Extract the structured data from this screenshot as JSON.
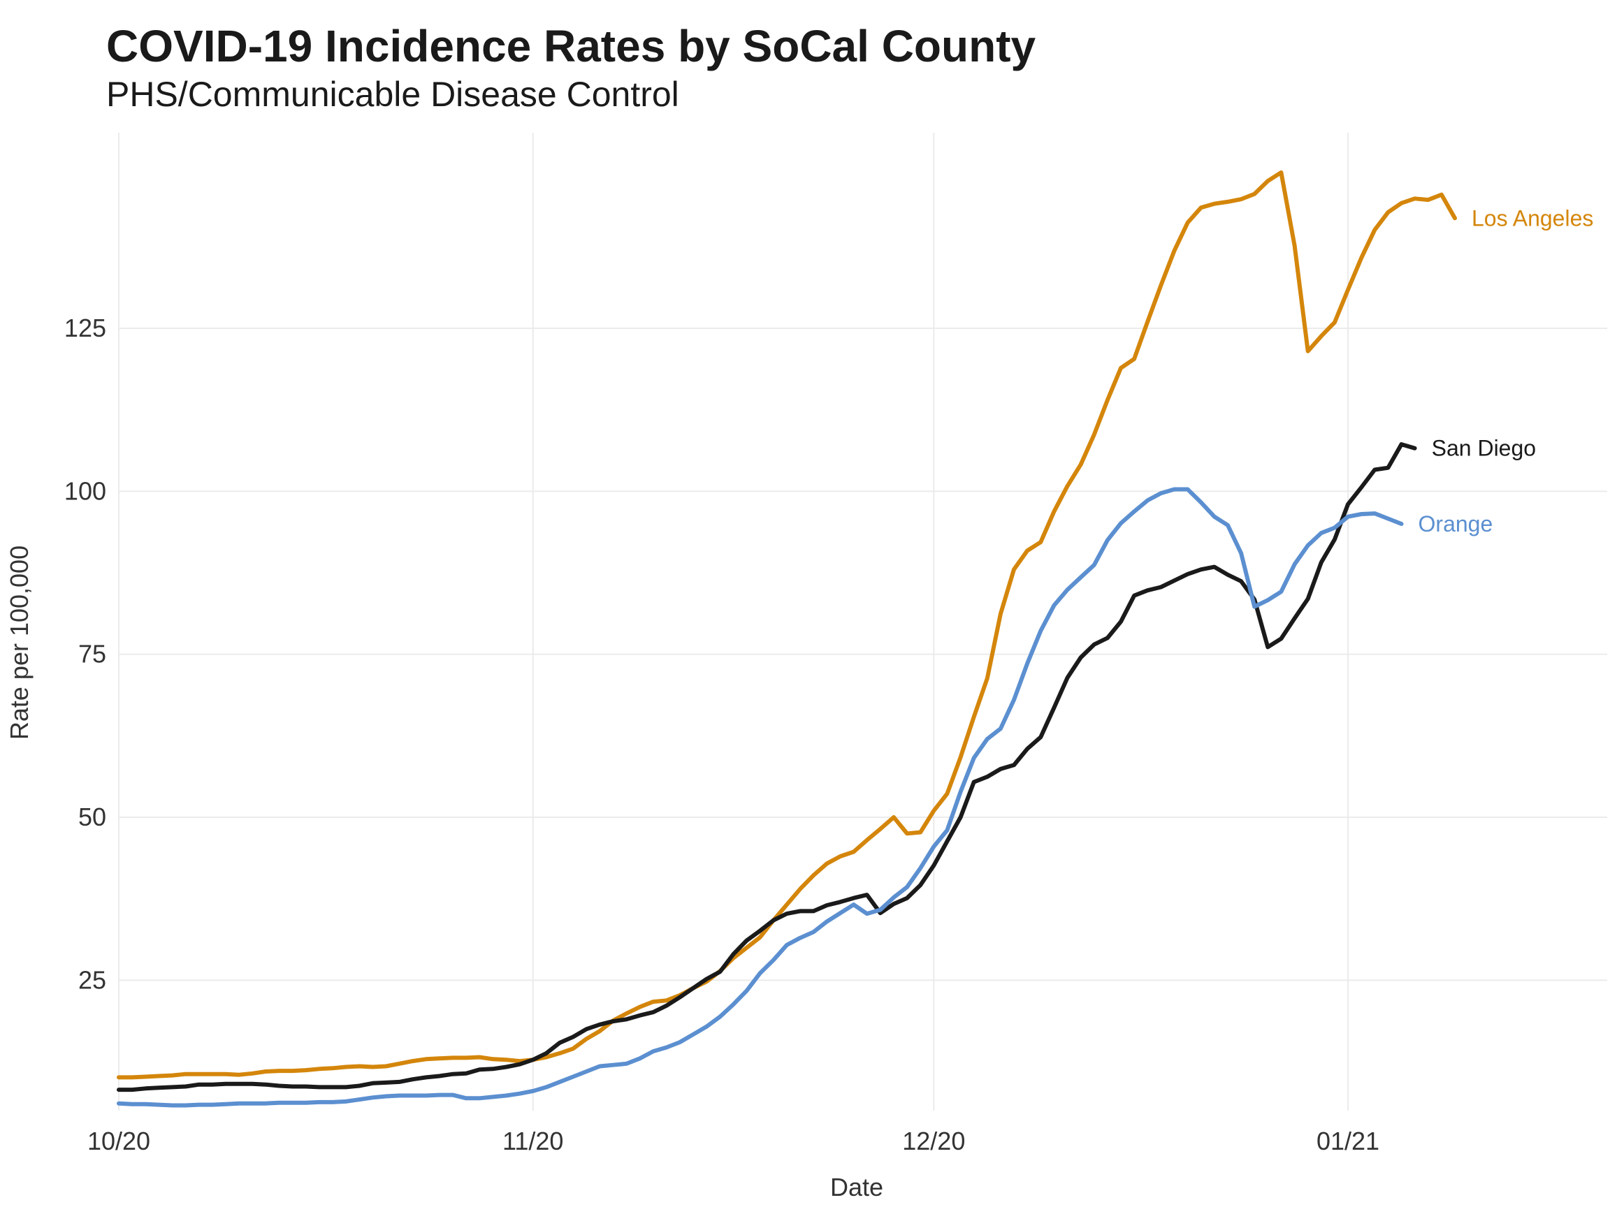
{
  "chart_data": {
    "type": "line",
    "title": "COVID-19 Incidence Rates by SoCal County",
    "subtitle": "PHS/Communicable Disease Control",
    "xlabel": "Date",
    "ylabel": "Rate per 100,000",
    "x_start": "2020-10-01",
    "x_ticks": [
      {
        "label": "10/20",
        "date": "2020-10-01"
      },
      {
        "label": "11/20",
        "date": "2020-11-01"
      },
      {
        "label": "12/20",
        "date": "2020-12-01"
      },
      {
        "label": "01/21",
        "date": "2021-01-01"
      }
    ],
    "xlim": [
      "2020-10-01",
      "2021-01-19"
    ],
    "y_ticks": [
      25,
      50,
      75,
      100,
      125
    ],
    "ylim": [
      5,
      155
    ],
    "grid": true,
    "legend": "direct labels at line ends",
    "series": [
      {
        "name": "Los Angeles",
        "color": "#D4860B",
        "values": [
          10.1,
          10.1,
          10.2,
          10.3,
          10.4,
          10.6,
          10.6,
          10.6,
          10.6,
          10.5,
          10.7,
          11.0,
          11.1,
          11.1,
          11.2,
          11.4,
          11.5,
          11.7,
          11.8,
          11.7,
          11.8,
          12.2,
          12.6,
          12.9,
          13.0,
          13.1,
          13.1,
          13.2,
          12.9,
          12.8,
          12.6,
          12.8,
          13.2,
          13.8,
          14.5,
          16.0,
          17.2,
          18.8,
          19.9,
          20.9,
          21.7,
          21.9,
          22.7,
          23.8,
          24.8,
          26.4,
          28.4,
          30.0,
          31.6,
          34.2,
          36.6,
          39.0,
          41.1,
          42.9,
          44.0,
          44.7,
          46.5,
          48.2,
          50.0,
          47.5,
          47.7,
          51.0,
          53.6,
          59.2,
          65.4,
          71.3,
          81.2,
          88.0,
          90.9,
          92.2,
          96.9,
          100.8,
          104.1,
          108.7,
          114.0,
          118.9,
          120.3,
          126.0,
          131.6,
          136.9,
          141.2,
          143.5,
          144.1,
          144.4,
          144.8,
          145.6,
          147.6,
          148.9,
          137.7,
          121.5,
          123.8,
          125.9,
          130.9,
          135.8,
          140.1,
          142.8,
          144.2,
          144.9,
          144.7,
          145.5,
          141.9
        ]
      },
      {
        "name": "San Diego",
        "color": "#1A1A1A",
        "values": [
          8.2,
          8.2,
          8.4,
          8.5,
          8.6,
          8.7,
          9.0,
          9.0,
          9.1,
          9.1,
          9.1,
          9.0,
          8.8,
          8.7,
          8.7,
          8.6,
          8.6,
          8.6,
          8.8,
          9.2,
          9.3,
          9.4,
          9.8,
          10.1,
          10.3,
          10.6,
          10.7,
          11.3,
          11.4,
          11.7,
          12.1,
          12.8,
          13.8,
          15.4,
          16.3,
          17.5,
          18.2,
          18.7,
          19.0,
          19.6,
          20.1,
          21.1,
          22.4,
          23.8,
          25.2,
          26.3,
          29.0,
          31.1,
          32.6,
          34.2,
          35.2,
          35.6,
          35.6,
          36.5,
          37.0,
          37.6,
          38.1,
          35.3,
          36.7,
          37.6,
          39.6,
          42.6,
          46.3,
          50.0,
          55.4,
          56.2,
          57.4,
          58.0,
          60.5,
          62.3,
          66.8,
          71.4,
          74.5,
          76.5,
          77.5,
          80.0,
          84.0,
          84.8,
          85.3,
          86.3,
          87.3,
          88.0,
          88.4,
          87.2,
          86.2,
          83.4,
          76.1,
          77.4,
          80.5,
          83.5,
          89.1,
          92.6,
          98.0,
          100.6,
          103.3,
          103.6,
          107.2,
          106.6
        ]
      },
      {
        "name": "Orange",
        "color": "#5B8FD0",
        "values": [
          6.1,
          6.0,
          6.0,
          5.9,
          5.8,
          5.8,
          5.9,
          5.9,
          6.0,
          6.1,
          6.1,
          6.1,
          6.2,
          6.2,
          6.2,
          6.3,
          6.3,
          6.4,
          6.7,
          7.0,
          7.2,
          7.3,
          7.3,
          7.3,
          7.4,
          7.4,
          6.9,
          6.9,
          7.1,
          7.3,
          7.6,
          8.0,
          8.6,
          9.4,
          10.2,
          11.0,
          11.8,
          12.0,
          12.2,
          13.0,
          14.1,
          14.7,
          15.5,
          16.7,
          17.9,
          19.4,
          21.3,
          23.4,
          26.1,
          28.1,
          30.4,
          31.5,
          32.4,
          34.0,
          35.3,
          36.6,
          35.2,
          35.8,
          37.7,
          39.3,
          42.2,
          45.5,
          48.0,
          53.9,
          59.1,
          62.0,
          63.6,
          68.0,
          73.6,
          78.6,
          82.5,
          84.9,
          86.8,
          88.7,
          92.5,
          95.1,
          96.9,
          98.6,
          99.7,
          100.3,
          100.3,
          98.3,
          96.1,
          94.8,
          90.5,
          82.3,
          83.3,
          84.6,
          88.8,
          91.7,
          93.6,
          94.4,
          96.1,
          96.5,
          96.6,
          95.8,
          95.0
        ]
      }
    ]
  }
}
